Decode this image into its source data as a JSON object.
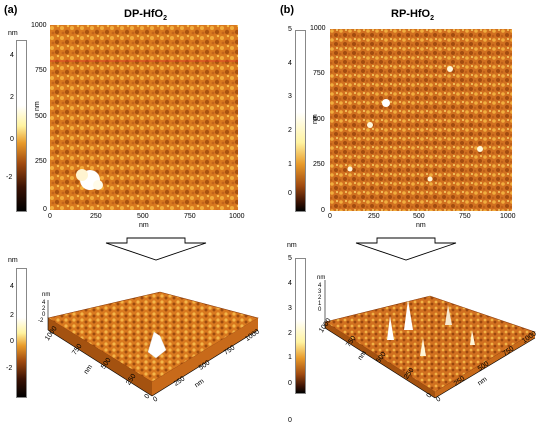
{
  "panels": [
    {
      "label": "(a)",
      "title_main": "DP-HfO",
      "title_sub": "2",
      "top_axis_unit": "nm",
      "x_ticks": [
        "0",
        "250",
        "500",
        "750",
        "1000"
      ],
      "y_ticks": [
        "1000",
        "750",
        "500",
        "250",
        "0"
      ],
      "x_unit": "nm",
      "y_unit": "nm",
      "colorbar_unit": "nm",
      "colorbar_ticks": [
        "4",
        "2",
        "0",
        "-2"
      ],
      "bottom_colorbar_unit": "nm",
      "bottom_colorbar_ticks": [
        "4",
        "2",
        "0",
        "-2"
      ],
      "z_ticks_3d": [
        "4",
        "2",
        "0",
        "-2"
      ],
      "z_unit_3d": "nm",
      "iso_axis_1": [
        "0",
        "250",
        "500",
        "750",
        "1000"
      ],
      "iso_axis_2": [
        "0",
        "250",
        "500",
        "750",
        "1000"
      ]
    },
    {
      "label": "(b)",
      "title_main": "RP-HfO",
      "title_sub": "2",
      "top_axis_unit": "nm",
      "x_ticks": [
        "0",
        "250",
        "500",
        "750",
        "1000"
      ],
      "y_ticks": [
        "1000",
        "750",
        "500",
        "250",
        "0"
      ],
      "x_unit": "nm",
      "y_unit": "nm",
      "colorbar_unit": "nm",
      "colorbar_ticks": [
        "5",
        "4",
        "3",
        "2",
        "1",
        "0"
      ],
      "bottom_colorbar_unit": "nm",
      "bottom_colorbar_ticks": [
        "5",
        "4",
        "3",
        "2",
        "1",
        "0"
      ],
      "bottom_colorbar_extra": "0",
      "z_ticks_3d": [
        "4",
        "3",
        "2",
        "1",
        "0"
      ],
      "z_unit_3d": "nm",
      "iso_axis_1": [
        "0",
        "250",
        "500",
        "750",
        "1000"
      ],
      "iso_axis_2": [
        "0",
        "250",
        "500",
        "750",
        "1000"
      ]
    }
  ],
  "colors": {
    "afm_dark": "#6b2a05",
    "afm_mid": "#d9791f",
    "afm_light": "#f6c04a",
    "arrow": "#000000"
  }
}
